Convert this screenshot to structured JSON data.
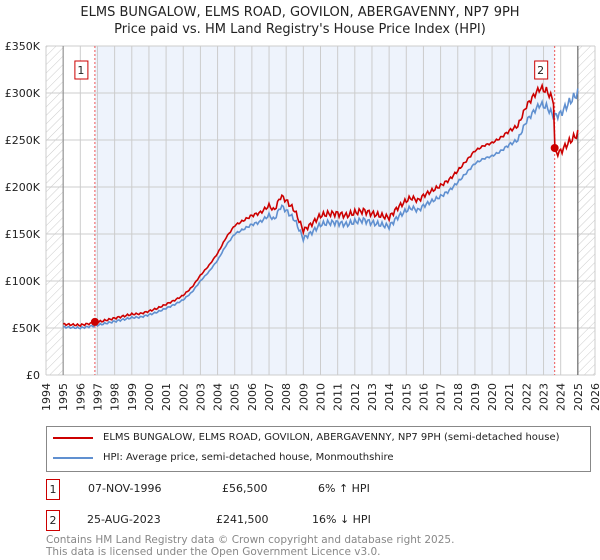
{
  "title": "ELMS BUNGALOW, ELMS ROAD, GOVILON, ABERGAVENNY, NP7 9PH",
  "subtitle": "Price paid vs. HM Land Registry's House Price Index (HPI)",
  "chart_data": {
    "type": "line",
    "xlim": [
      1994,
      2026
    ],
    "ylim": [
      0,
      350000
    ],
    "y_ticks": [
      {
        "v": 0,
        "label": "£0"
      },
      {
        "v": 50000,
        "label": "£50K"
      },
      {
        "v": 100000,
        "label": "£100K"
      },
      {
        "v": 150000,
        "label": "£150K"
      },
      {
        "v": 200000,
        "label": "£200K"
      },
      {
        "v": 250000,
        "label": "£250K"
      },
      {
        "v": 300000,
        "label": "£300K"
      },
      {
        "v": 350000,
        "label": "£350K"
      }
    ],
    "x_ticks": [
      "1994",
      "1995",
      "1996",
      "1997",
      "1998",
      "1999",
      "2000",
      "2001",
      "2002",
      "2003",
      "2004",
      "2005",
      "2006",
      "2007",
      "2008",
      "2009",
      "2010",
      "2011",
      "2012",
      "2013",
      "2014",
      "2015",
      "2016",
      "2017",
      "2018",
      "2019",
      "2020",
      "2021",
      "2022",
      "2023",
      "2024",
      "2025",
      "2026"
    ],
    "grid": true,
    "colors": {
      "property": "#cc0000",
      "hpi": "#6090d0",
      "shade": "#eef3fc"
    },
    "hpi": {
      "x": [
        1995,
        1995.5,
        1996,
        1996.5,
        1997,
        1997.5,
        1998,
        1998.5,
        1999,
        1999.5,
        2000,
        2000.5,
        2001,
        2001.5,
        2002,
        2002.5,
        2003,
        2003.5,
        2004,
        2004.5,
        2005,
        2005.5,
        2006,
        2006.5,
        2007,
        2007.3,
        2007.7,
        2008,
        2008.5,
        2009,
        2009.5,
        2010,
        2010.5,
        2011,
        2011.5,
        2012,
        2012.5,
        2013,
        2013.5,
        2014,
        2014.5,
        2015,
        2015.3,
        2015.7,
        2016,
        2016.5,
        2017,
        2017.5,
        2018,
        2018.5,
        2019,
        2019.5,
        2020,
        2020.5,
        2021,
        2021.5,
        2022,
        2022.5,
        2022.8,
        2023.2,
        2023.6,
        2024,
        2024.5,
        2025
      ],
      "y": [
        51000,
        50500,
        50000,
        51500,
        53000,
        55000,
        57000,
        59000,
        61000,
        61500,
        64000,
        67000,
        71000,
        75000,
        80000,
        88000,
        100000,
        110000,
        122000,
        138000,
        150000,
        155000,
        160000,
        163000,
        170000,
        165000,
        180000,
        175000,
        165000,
        145000,
        152000,
        160000,
        162000,
        162000,
        160000,
        163000,
        165000,
        162000,
        160000,
        158000,
        168000,
        175000,
        178000,
        175000,
        180000,
        185000,
        190000,
        196000,
        205000,
        215000,
        225000,
        230000,
        233000,
        238000,
        245000,
        250000,
        270000,
        282000,
        288000,
        285000,
        275000,
        278000,
        290000,
        300000
      ]
    },
    "property": {
      "label_factor_note": "",
      "x": [],
      "y": []
    },
    "sales": [
      {
        "n": "1",
        "x": 1996.85,
        "y": 56500
      },
      {
        "n": "2",
        "x": 2023.65,
        "y": 241500
      }
    ],
    "legend": [
      "ELMS BUNGALOW, ELMS ROAD, GOVILON, ABERGAVENNY, NP7 9PH (semi-detached house)",
      "HPI: Average price, semi-detached house, Monmouthshire"
    ]
  },
  "transactions": [
    {
      "n": "1",
      "date": "07-NOV-1996",
      "price": "£56,500",
      "hpi": "6% ↑ HPI"
    },
    {
      "n": "2",
      "date": "25-AUG-2023",
      "price": "£241,500",
      "hpi": "16% ↓ HPI"
    }
  ],
  "footer": [
    "Contains HM Land Registry data © Crown copyright and database right 2025.",
    "This data is licensed under the Open Government Licence v3.0."
  ]
}
